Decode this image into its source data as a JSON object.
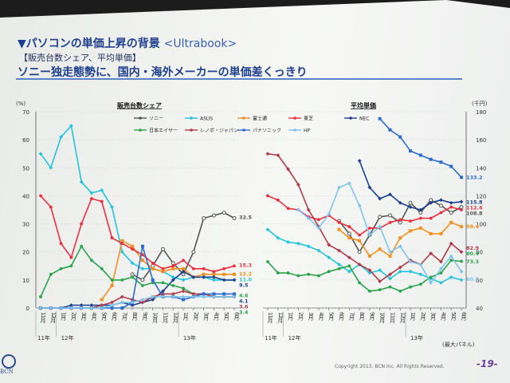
{
  "title": "▼パソコンの単価上昇の背景",
  "title_sub": "<Ultrabook>",
  "bracket_label": "【販売台数シェア、平均単価】",
  "headline": "ソニー独走態勢に、国内・海外メーカーの単価差くっきり",
  "footer": "Copyright 2013. BCN Inc. All Rights Reserved.",
  "page_number": "-19-",
  "logo_text": "BCN",
  "chart_data": [
    {
      "type": "line",
      "title": "販売台数シェア",
      "ylabel": "(%)",
      "ylim": [
        0,
        70
      ],
      "yticks": [
        0,
        10,
        20,
        30,
        40,
        50,
        60,
        70
      ],
      "x": [
        "11月",
        "12月",
        "1月",
        "2月",
        "3月",
        "4月",
        "5月",
        "6月",
        "7月",
        "8月",
        "9月",
        "10月",
        "11月",
        "12月",
        "1月",
        "2月",
        "3月",
        "4月",
        "5月",
        "6月"
      ],
      "year_labels": [
        "11年",
        "12年",
        "13年"
      ],
      "series": [
        {
          "name": "ソニー",
          "color": "#555555",
          "values": [
            null,
            null,
            null,
            null,
            null,
            null,
            null,
            null,
            null,
            12,
            10,
            15,
            21,
            16,
            12,
            20,
            32,
            33,
            34,
            32
          ]
        },
        {
          "name": "ASUS",
          "color": "#22c4dc",
          "values": [
            55,
            50,
            61,
            65,
            45,
            41,
            42,
            36,
            20,
            16,
            14,
            14,
            13,
            11,
            10,
            11,
            11,
            10,
            10,
            10
          ]
        },
        {
          "name": "富士通",
          "color": "#f39020",
          "values": [
            null,
            null,
            null,
            null,
            null,
            null,
            3,
            8,
            24,
            22,
            17,
            14,
            13,
            14,
            14,
            11,
            12,
            12,
            12,
            12
          ]
        },
        {
          "name": "東芝",
          "color": "#ee2d3e",
          "values": [
            40,
            36,
            23,
            18,
            30,
            39,
            38,
            25,
            23,
            21,
            19,
            16,
            14,
            15,
            17,
            14,
            14,
            13,
            14,
            15
          ]
        },
        {
          "name": "NEC",
          "color": "#1c3f8f",
          "values": [
            0,
            0,
            0,
            1,
            1,
            1,
            1,
            1,
            2,
            1,
            2,
            3,
            6,
            10,
            13,
            11,
            11,
            11,
            10,
            10
          ]
        },
        {
          "name": "日本エイサー",
          "color": "#2aa34a",
          "values": [
            4,
            12,
            14,
            15,
            22,
            17,
            14,
            10,
            10,
            11,
            8,
            9,
            9,
            8,
            7,
            5,
            5,
            4,
            4,
            4
          ]
        },
        {
          "name": "レノボ・ジャパン",
          "color": "#b03a48",
          "values": [
            0,
            0,
            0,
            0,
            0,
            0,
            1,
            2,
            4,
            3,
            2,
            4,
            5,
            5,
            6,
            5,
            5,
            4,
            4,
            4
          ]
        },
        {
          "name": "パナソニック",
          "color": "#2e6bd0",
          "values": [
            0,
            0,
            0,
            0,
            0,
            0,
            0,
            0,
            0,
            2,
            22,
            10,
            4,
            4,
            3,
            4,
            5,
            5,
            5,
            5
          ]
        },
        {
          "name": "HP",
          "color": "#7fc4ea",
          "values": [
            0,
            0,
            0,
            0,
            0,
            0,
            0,
            1,
            2,
            2,
            3,
            4,
            4,
            4,
            4,
            4,
            4,
            4,
            4,
            4
          ]
        }
      ],
      "data_labels": [
        "32.5",
        "15.3",
        "12.2",
        "11.0",
        "9.5",
        "4.6",
        "4.1",
        "3.6",
        "3.4"
      ]
    },
    {
      "type": "line",
      "title": "平均単価",
      "ylabel": "(千円)",
      "ylim": [
        40,
        180
      ],
      "yticks": [
        40,
        60,
        80,
        100,
        120,
        140,
        160,
        180
      ],
      "x": [
        "11月",
        "12月",
        "1月",
        "2月",
        "3月",
        "4月",
        "5月",
        "6月",
        "7月",
        "8月",
        "9月",
        "10月",
        "11月",
        "12月",
        "1月",
        "2月",
        "3月",
        "4月",
        "5月",
        "6月"
      ],
      "year_labels": [
        "11年",
        "12年",
        "13年"
      ],
      "annotation": "(最大パネル)",
      "series": [
        {
          "name": "ソニー",
          "color": "#555555",
          "values": [
            null,
            null,
            null,
            null,
            null,
            null,
            null,
            102,
            93,
            80,
            92,
            105,
            106,
            101,
            115,
            108,
            117,
            113,
            108,
            112
          ]
        },
        {
          "name": "ASUS",
          "color": "#22c4dc",
          "values": [
            96,
            90,
            87,
            86,
            84,
            81,
            76,
            71,
            66,
            71,
            65,
            67,
            61,
            66,
            66,
            64,
            61,
            58,
            62,
            60
          ]
        },
        {
          "name": "富士通",
          "color": "#f39020",
          "values": [
            null,
            null,
            null,
            null,
            null,
            null,
            null,
            96,
            90,
            88,
            77,
            82,
            77,
            90,
            95,
            97,
            93,
            93,
            101,
            98
          ]
        },
        {
          "name": "東芝",
          "color": "#ee2d3e",
          "values": [
            120,
            117,
            111,
            110,
            105,
            103,
            106,
            101,
            98,
            92,
            97,
            97,
            101,
            103,
            102,
            104,
            104,
            108,
            112,
            110
          ]
        },
        {
          "name": "NEC",
          "color": "#1c3f8f",
          "values": [
            null,
            null,
            null,
            null,
            null,
            null,
            null,
            null,
            null,
            145,
            126,
            118,
            121,
            115,
            112,
            110,
            115,
            117,
            115,
            115.8
          ]
        },
        {
          "name": "日本エイサー",
          "color": "#2aa34a",
          "values": [
            73,
            65,
            65,
            63,
            64,
            63,
            66,
            68,
            70,
            58,
            52,
            53,
            55,
            52,
            55,
            57,
            62,
            65,
            74,
            73.3
          ]
        },
        {
          "name": "レノボ・ジャパン",
          "color": "#b03a48",
          "values": [
            150,
            149,
            139,
            128,
            110,
            98,
            85,
            81,
            76,
            71,
            67,
            59,
            64,
            69,
            74,
            71,
            79,
            73,
            86,
            80
          ]
        },
        {
          "name": "パナソニック",
          "color": "#2e6bd0",
          "values": [
            null,
            null,
            null,
            null,
            null,
            null,
            null,
            null,
            null,
            null,
            null,
            175,
            167,
            162,
            152,
            149,
            146,
            144,
            141,
            133.2
          ]
        },
        {
          "name": "HP",
          "color": "#7fc4ea",
          "values": [
            null,
            null,
            null,
            110,
            104,
            97,
            107,
            126,
            129,
            113,
            92,
            98,
            80,
            84,
            73,
            71,
            58,
            68,
            77,
            66
          ]
        }
      ],
      "data_labels": [
        "133.2",
        "115.8",
        "112.4",
        "108.8",
        "98.4",
        "82.9",
        "80.4",
        "73.3",
        "60.7"
      ]
    }
  ]
}
